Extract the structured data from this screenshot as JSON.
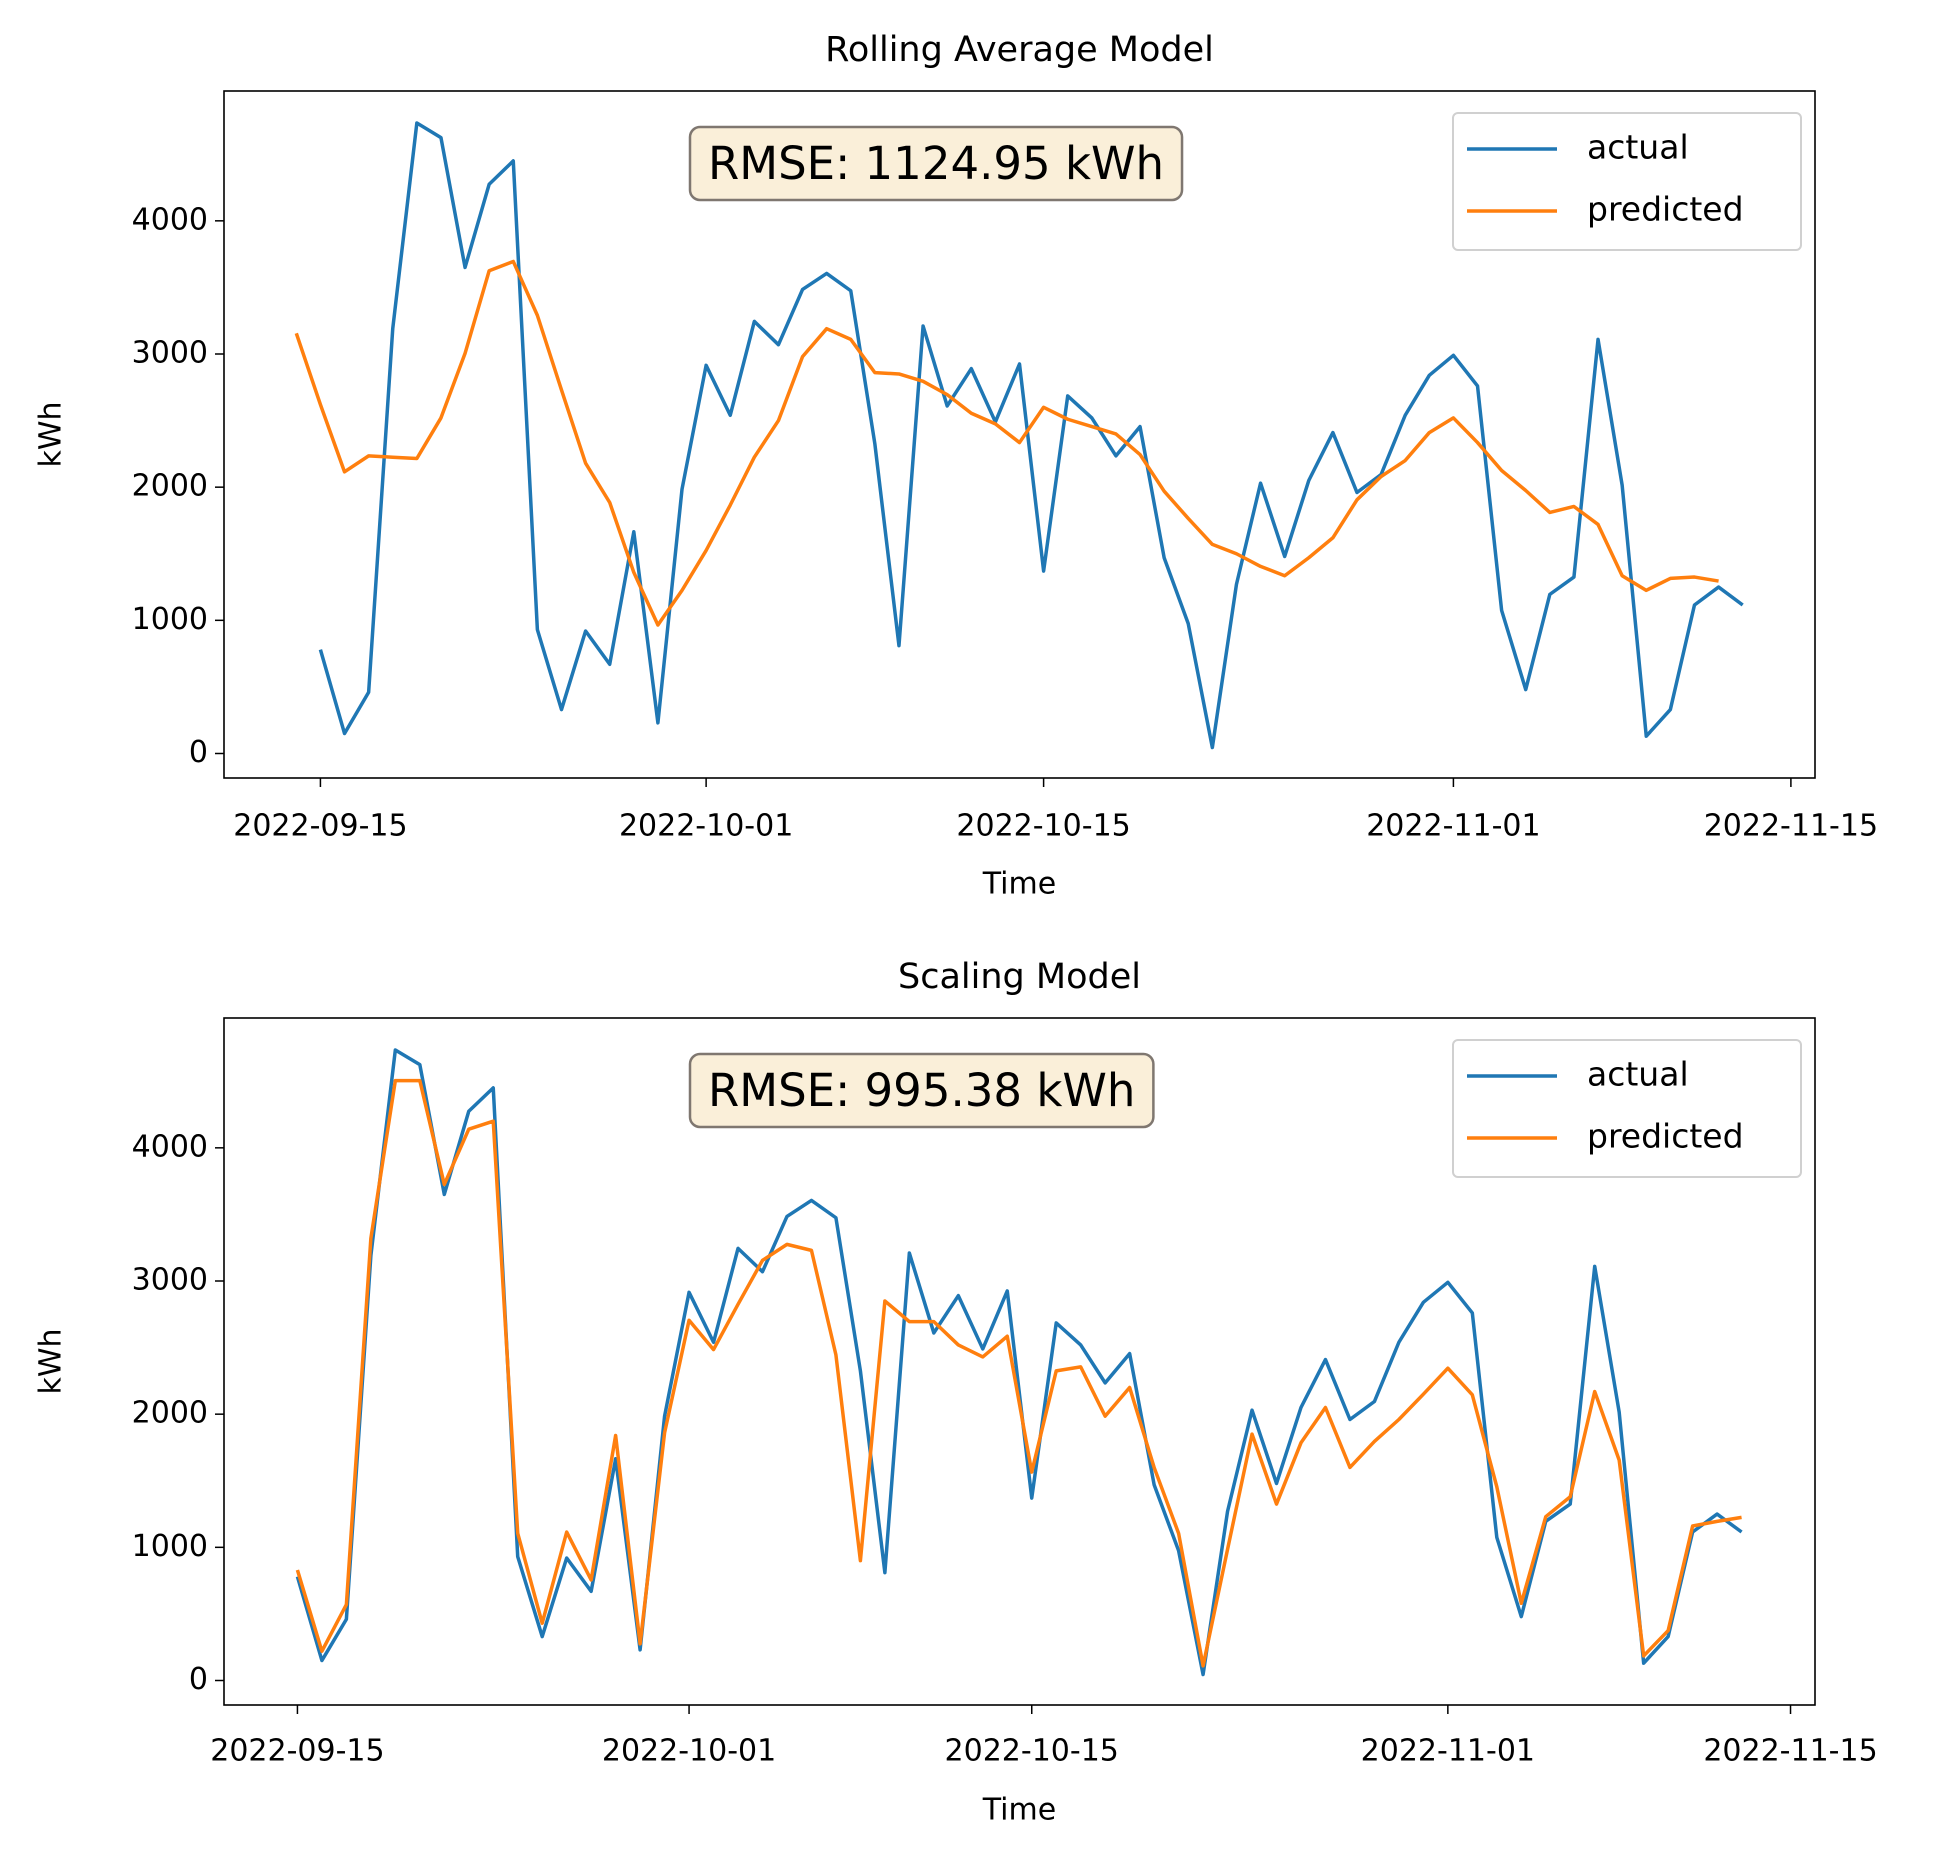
{
  "chart_data": [
    {
      "type": "line",
      "title": "Rolling Average Model",
      "xlabel": "Time",
      "ylabel": "kWh",
      "annotation": "RMSE: 1124.95 kWh",
      "legend": "upper right",
      "x": [
        "2022-09-14",
        "2022-09-15",
        "2022-09-16",
        "2022-09-17",
        "2022-09-18",
        "2022-09-19",
        "2022-09-20",
        "2022-09-21",
        "2022-09-22",
        "2022-09-23",
        "2022-09-24",
        "2022-09-25",
        "2022-09-26",
        "2022-09-27",
        "2022-09-28",
        "2022-09-29",
        "2022-09-30",
        "2022-10-01",
        "2022-10-02",
        "2022-10-03",
        "2022-10-04",
        "2022-10-05",
        "2022-10-06",
        "2022-10-07",
        "2022-10-08",
        "2022-10-09",
        "2022-10-10",
        "2022-10-11",
        "2022-10-12",
        "2022-10-13",
        "2022-10-14",
        "2022-10-15",
        "2022-10-16",
        "2022-10-17",
        "2022-10-18",
        "2022-10-19",
        "2022-10-20",
        "2022-10-21",
        "2022-10-22",
        "2022-10-23",
        "2022-10-24",
        "2022-10-25",
        "2022-10-26",
        "2022-10-27",
        "2022-10-28",
        "2022-10-29",
        "2022-10-30",
        "2022-10-31",
        "2022-11-01",
        "2022-11-02",
        "2022-11-03",
        "2022-11-04",
        "2022-11-05",
        "2022-11-06",
        "2022-11-07",
        "2022-11-08",
        "2022-11-09",
        "2022-11-10",
        "2022-11-11",
        "2022-11-12",
        "2022-11-13"
      ],
      "series": [
        {
          "name": "actual",
          "color": "#1f77b4",
          "values": [
            null,
            780,
            150,
            460,
            3190,
            4735,
            4625,
            3650,
            4275,
            4450,
            930,
            330,
            920,
            670,
            1665,
            230,
            1985,
            2915,
            2540,
            3245,
            3070,
            3485,
            3605,
            3475,
            2325,
            810,
            3210,
            2610,
            2890,
            2490,
            2925,
            1370,
            2685,
            2520,
            2235,
            2455,
            1470,
            975,
            45,
            1270,
            2030,
            1480,
            2050,
            2410,
            1960,
            2095,
            2540,
            2840,
            2990,
            2760,
            1075,
            480,
            1195,
            1325,
            3110,
            2015,
            130,
            330,
            1115,
            1250,
            1115
          ]
        },
        {
          "name": "predicted",
          "color": "#ff7f0e",
          "values": [
            3155,
            2620,
            2115,
            2235,
            2225,
            2215,
            2520,
            3005,
            3625,
            3695,
            3290,
            2730,
            2180,
            1885,
            1360,
            965,
            1225,
            1525,
            1865,
            2225,
            2500,
            2980,
            3190,
            3110,
            2860,
            2850,
            2795,
            2695,
            2555,
            2475,
            2335,
            2600,
            2510,
            2455,
            2400,
            2245,
            1970,
            1765,
            1570,
            1500,
            1405,
            1335,
            1470,
            1620,
            1905,
            2080,
            2200,
            2410,
            2520,
            2335,
            2125,
            1975,
            1810,
            1855,
            1720,
            1335,
            1225,
            1315,
            1325,
            1295,
            null
          ]
        }
      ],
      "xlim": [
        "2022-09-11",
        "2022-11-16"
      ],
      "xticks": [
        "2022-09-15",
        "2022-10-01",
        "2022-10-15",
        "2022-11-01",
        "2022-11-15"
      ],
      "ylim": [
        -184,
        4975
      ],
      "yticks": [
        0,
        1000,
        2000,
        3000,
        4000
      ]
    },
    {
      "type": "line",
      "title": "Scaling Model",
      "xlabel": "Time",
      "ylabel": "kWh",
      "annotation": "RMSE: 995.38 kWh",
      "legend": "upper right",
      "x": [
        "2022-09-15",
        "2022-09-16",
        "2022-09-17",
        "2022-09-18",
        "2022-09-19",
        "2022-09-20",
        "2022-09-21",
        "2022-09-22",
        "2022-09-23",
        "2022-09-24",
        "2022-09-25",
        "2022-09-26",
        "2022-09-27",
        "2022-09-28",
        "2022-09-29",
        "2022-09-30",
        "2022-10-01",
        "2022-10-02",
        "2022-10-03",
        "2022-10-04",
        "2022-10-05",
        "2022-10-06",
        "2022-10-07",
        "2022-10-08",
        "2022-10-09",
        "2022-10-10",
        "2022-10-11",
        "2022-10-12",
        "2022-10-13",
        "2022-10-14",
        "2022-10-15",
        "2022-10-16",
        "2022-10-17",
        "2022-10-18",
        "2022-10-19",
        "2022-10-20",
        "2022-10-21",
        "2022-10-22",
        "2022-10-23",
        "2022-10-24",
        "2022-10-25",
        "2022-10-26",
        "2022-10-27",
        "2022-10-28",
        "2022-10-29",
        "2022-10-30",
        "2022-10-31",
        "2022-11-01",
        "2022-11-02",
        "2022-11-03",
        "2022-11-04",
        "2022-11-05",
        "2022-11-06",
        "2022-11-07",
        "2022-11-08",
        "2022-11-09",
        "2022-11-10",
        "2022-11-11",
        "2022-11-12",
        "2022-11-13"
      ],
      "series": [
        {
          "name": "actual",
          "color": "#1f77b4",
          "values": [
            780,
            150,
            460,
            3190,
            4735,
            4625,
            3650,
            4275,
            4450,
            930,
            330,
            920,
            670,
            1665,
            230,
            1985,
            2915,
            2540,
            3245,
            3070,
            3485,
            3605,
            3475,
            2325,
            810,
            3210,
            2610,
            2890,
            2490,
            2925,
            1370,
            2685,
            2520,
            2235,
            2455,
            1470,
            975,
            45,
            1270,
            2030,
            1480,
            2050,
            2410,
            1960,
            2095,
            2540,
            2840,
            2990,
            2760,
            1075,
            480,
            1195,
            1325,
            3110,
            2015,
            130,
            330,
            1115,
            1250,
            1115
          ]
        },
        {
          "name": "predicted",
          "color": "#ff7f0e",
          "values": [
            830,
            220,
            570,
            3320,
            4505,
            4505,
            3725,
            4140,
            4200,
            1105,
            430,
            1115,
            755,
            1840,
            275,
            1860,
            2705,
            2485,
            2825,
            3155,
            3275,
            3230,
            2445,
            900,
            2850,
            2695,
            2695,
            2520,
            2430,
            2585,
            1565,
            2325,
            2355,
            1985,
            2200,
            1600,
            1105,
            110,
            985,
            1850,
            1325,
            1785,
            2050,
            1600,
            1795,
            1960,
            2150,
            2345,
            2145,
            1455,
            580,
            1230,
            1380,
            2170,
            1655,
            185,
            375,
            1160,
            1195,
            1225
          ]
        }
      ],
      "xlim": [
        "2022-09-12",
        "2022-11-16"
      ],
      "xticks": [
        "2022-09-15",
        "2022-10-01",
        "2022-10-15",
        "2022-11-01",
        "2022-11-15"
      ],
      "ylim": [
        -184,
        4975
      ],
      "yticks": [
        0,
        1000,
        2000,
        3000,
        4000
      ]
    }
  ]
}
